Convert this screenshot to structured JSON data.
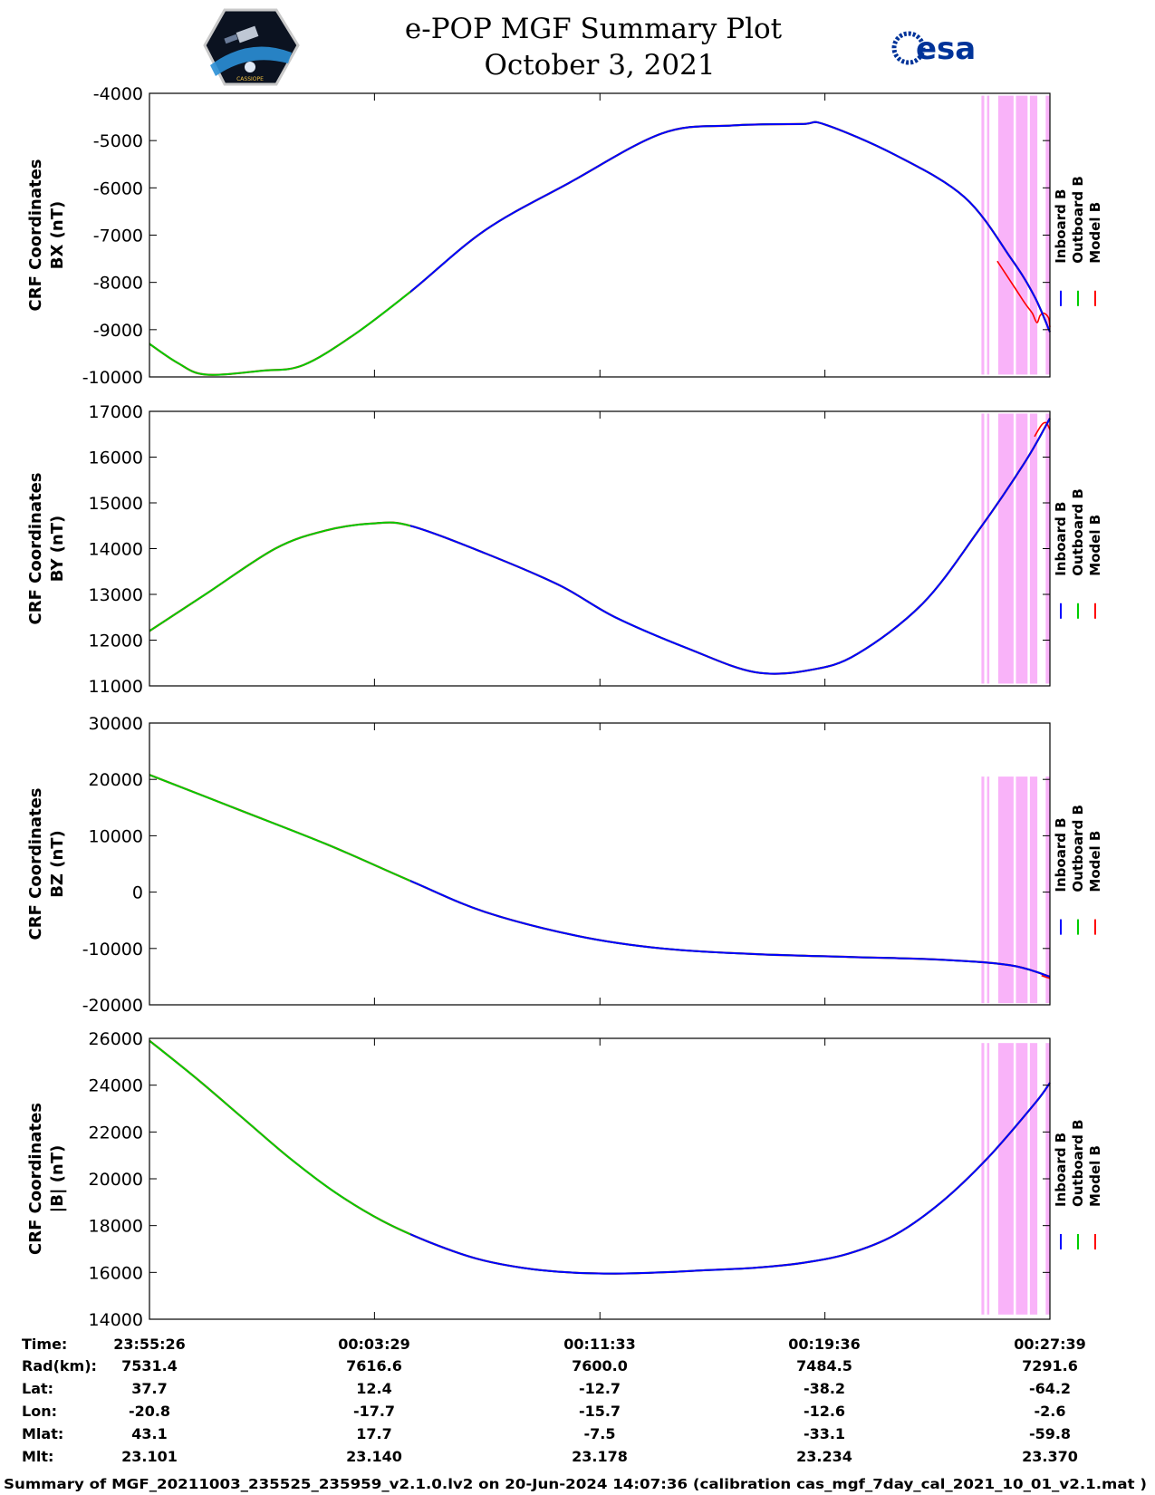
{
  "header": {
    "title_line1": "e-POP MGF Summary Plot",
    "title_line2": "October 3, 2021",
    "logo_left_text": "CASSIOPE",
    "logo_right_text": "esa"
  },
  "colors": {
    "inboard": "#0000ff",
    "outboard": "#00cc00",
    "model": "#ff0000",
    "highlight": "#f9b3f9"
  },
  "legend": {
    "inboard": "Inboard B",
    "outboard": "Outboard B",
    "model": "Model B"
  },
  "chart_data": [
    {
      "type": "line",
      "id": "bx",
      "ylabel_line1": "CRF Coordinates",
      "ylabel_line2": "BX (nT)",
      "ylim": [
        -10000,
        -4000
      ],
      "yticks": [
        -4000,
        -5000,
        -6000,
        -7000,
        -8000,
        -9000,
        -10000
      ],
      "ytick_labels": [
        "-4000",
        "-5000",
        "-6000",
        "-7000",
        "-8000",
        "-9000",
        "-10000"
      ],
      "xlim": [
        0,
        1933
      ],
      "x": [
        0,
        60,
        120,
        240,
        330,
        440,
        560,
        720,
        900,
        1100,
        1250,
        1400,
        1450,
        1600,
        1750,
        1850,
        1900,
        1933
      ],
      "model": [
        -9300,
        -9700,
        -9950,
        -9870,
        -9750,
        -9100,
        -8200,
        -6900,
        -5900,
        -4850,
        -4680,
        -4650,
        -4660,
        -5300,
        -6200,
        -7500,
        -8300,
        -9050
      ],
      "model_tail": {
        "x": [
          1820,
          1860,
          1880,
          1895,
          1905,
          1912,
          1920,
          1930,
          1933
        ],
        "y": [
          -7550,
          -8150,
          -8450,
          -8650,
          -8850,
          -8700,
          -8650,
          -8750,
          -8950
        ]
      },
      "split_x": 560,
      "highlight_y": [
        -9950,
        -4050
      ]
    },
    {
      "type": "line",
      "id": "by",
      "ylabel_line1": "CRF Coordinates",
      "ylabel_line2": "BY (nT)",
      "ylim": [
        11000,
        17000
      ],
      "yticks": [
        17000,
        16000,
        15000,
        14000,
        13000,
        12000,
        11000
      ],
      "ytick_labels": [
        "17000",
        "16000",
        "15000",
        "14000",
        "13000",
        "12000",
        "11000"
      ],
      "xlim": [
        0,
        1933
      ],
      "x": [
        0,
        120,
        270,
        380,
        480,
        560,
        720,
        880,
        1000,
        1160,
        1300,
        1420,
        1520,
        1660,
        1780,
        1880,
        1933
      ],
      "model": [
        12200,
        13000,
        14000,
        14400,
        14550,
        14500,
        13900,
        13200,
        12500,
        11800,
        11300,
        11350,
        11700,
        12800,
        14400,
        15900,
        16850
      ],
      "model_tail": {
        "x": [
          1900,
          1915,
          1925,
          1933
        ],
        "y": [
          16450,
          16700,
          16750,
          16600
        ]
      },
      "split_x": 560,
      "highlight_y": [
        11050,
        16950
      ]
    },
    {
      "type": "line",
      "id": "bz",
      "ylabel_line1": "CRF Coordinates",
      "ylabel_line2": "BZ (nT)",
      "ylim": [
        -20000,
        30000
      ],
      "yticks": [
        30000,
        20000,
        10000,
        0,
        -10000,
        -20000
      ],
      "ytick_labels": [
        "30000",
        "20000",
        "10000",
        "0",
        "-10000",
        "-20000"
      ],
      "xlim": [
        0,
        1933
      ],
      "x": [
        0,
        180,
        380,
        560,
        720,
        920,
        1100,
        1300,
        1500,
        1700,
        1850,
        1933
      ],
      "model": [
        20800,
        15000,
        8500,
        2000,
        -3500,
        -7800,
        -10000,
        -11000,
        -11500,
        -12000,
        -13000,
        -15000
      ],
      "model_tail": {
        "x": [
          1915,
          1925,
          1933
        ],
        "y": [
          -14800,
          -15100,
          -15300
        ]
      },
      "split_x": 560,
      "highlight_y": [
        -19700,
        20500
      ]
    },
    {
      "type": "line",
      "id": "bmag",
      "ylabel_line1": "CRF Coordinates",
      "ylabel_line2": "|B| (nT)",
      "ylim": [
        14000,
        26000
      ],
      "yticks": [
        26000,
        24000,
        22000,
        20000,
        18000,
        16000,
        14000
      ],
      "ytick_labels": [
        "26000",
        "24000",
        "22000",
        "20000",
        "18000",
        "16000",
        "14000"
      ],
      "xlim": [
        0,
        1933
      ],
      "x": [
        0,
        100,
        200,
        300,
        400,
        500,
        600,
        700,
        800,
        900,
        1000,
        1100,
        1200,
        1300,
        1400,
        1500,
        1600,
        1700,
        1800,
        1900,
        1933
      ],
      "model": [
        25900,
        24300,
        22600,
        20900,
        19400,
        18200,
        17300,
        16600,
        16200,
        16000,
        15950,
        16000,
        16100,
        16200,
        16400,
        16800,
        17600,
        19000,
        20900,
        23200,
        24100
      ],
      "split_x": 560,
      "highlight_y": [
        14200,
        25800
      ]
    }
  ],
  "highlight_bands": [
    [
      1786,
      1792
    ],
    [
      1798,
      1803
    ],
    [
      1822,
      1855
    ],
    [
      1860,
      1885
    ],
    [
      1890,
      1906
    ],
    [
      1924,
      1933
    ]
  ],
  "x_ticks": [
    0,
    483,
    967,
    1450,
    1933
  ],
  "table": {
    "row_labels": [
      "Time:",
      "Rad(km):",
      "Lat:",
      "Lon:",
      "Mlat:",
      "Mlt:"
    ],
    "columns": [
      [
        "23:55:26",
        "7531.4",
        "37.7",
        "-20.8",
        "43.1",
        "23.101"
      ],
      [
        "00:03:29",
        "7616.6",
        "12.4",
        "-17.7",
        "17.7",
        "23.140"
      ],
      [
        "00:11:33",
        "7600.0",
        "-12.7",
        "-15.7",
        "-7.5",
        "23.178"
      ],
      [
        "00:19:36",
        "7484.5",
        "-38.2",
        "-12.6",
        "-33.1",
        "23.234"
      ],
      [
        "00:27:39",
        "7291.6",
        "-64.2",
        "-2.6",
        "-59.8",
        "23.370"
      ]
    ]
  },
  "footer": "Summary of MGF_20211003_235525_235959_v2.1.0.lv2 on 20-Jun-2024 14:07:36 (calibration cas_mgf_7day_cal_2021_10_01_v2.1.mat )"
}
